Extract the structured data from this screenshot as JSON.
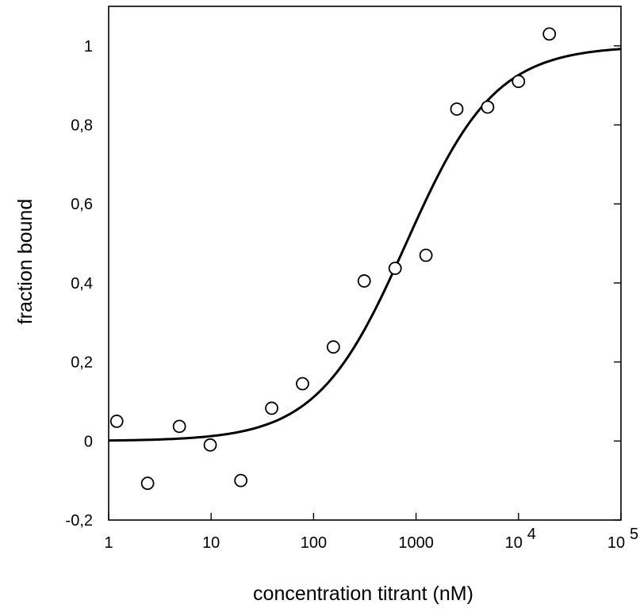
{
  "chart_data": {
    "type": "scatter",
    "title": "",
    "xlabel": "concentration titrant (nM)",
    "ylabel": "fraction bound",
    "x_scale": "log",
    "xlim": [
      1,
      100000
    ],
    "ylim": [
      -0.2,
      1.1
    ],
    "x_ticks": [
      {
        "value": 1,
        "base": "1",
        "exp": ""
      },
      {
        "value": 10,
        "base": "10",
        "exp": ""
      },
      {
        "value": 100,
        "base": "100",
        "exp": ""
      },
      {
        "value": 1000,
        "base": "1000",
        "exp": ""
      },
      {
        "value": 10000,
        "base": "10",
        "exp": "4"
      },
      {
        "value": 100000,
        "base": "10",
        "exp": "5"
      }
    ],
    "y_ticks": [
      {
        "value": -0.2,
        "label": "-0,2"
      },
      {
        "value": 0,
        "label": "0"
      },
      {
        "value": 0.2,
        "label": "0,2"
      },
      {
        "value": 0.4,
        "label": "0,4"
      },
      {
        "value": 0.6,
        "label": "0,6"
      },
      {
        "value": 0.8,
        "label": "0,8"
      },
      {
        "value": 1,
        "label": "1"
      }
    ],
    "grid": false,
    "legend": "none",
    "series": [
      {
        "kind": "points",
        "marker": "open-circle",
        "x": [
          1.2,
          2.4,
          4.9,
          9.8,
          19.5,
          39,
          78,
          156,
          312,
          625,
          1250,
          2500,
          5000,
          10000,
          20000
        ],
        "y": [
          0.05,
          -0.107,
          0.037,
          -0.01,
          -0.1,
          0.083,
          0.145,
          0.238,
          0.405,
          0.437,
          0.47,
          0.84,
          0.845,
          0.91,
          1.03
        ]
      },
      {
        "kind": "fit-curve",
        "model": "hill",
        "kd": 800,
        "n": 1,
        "bottom": 0,
        "top": 1
      }
    ]
  }
}
